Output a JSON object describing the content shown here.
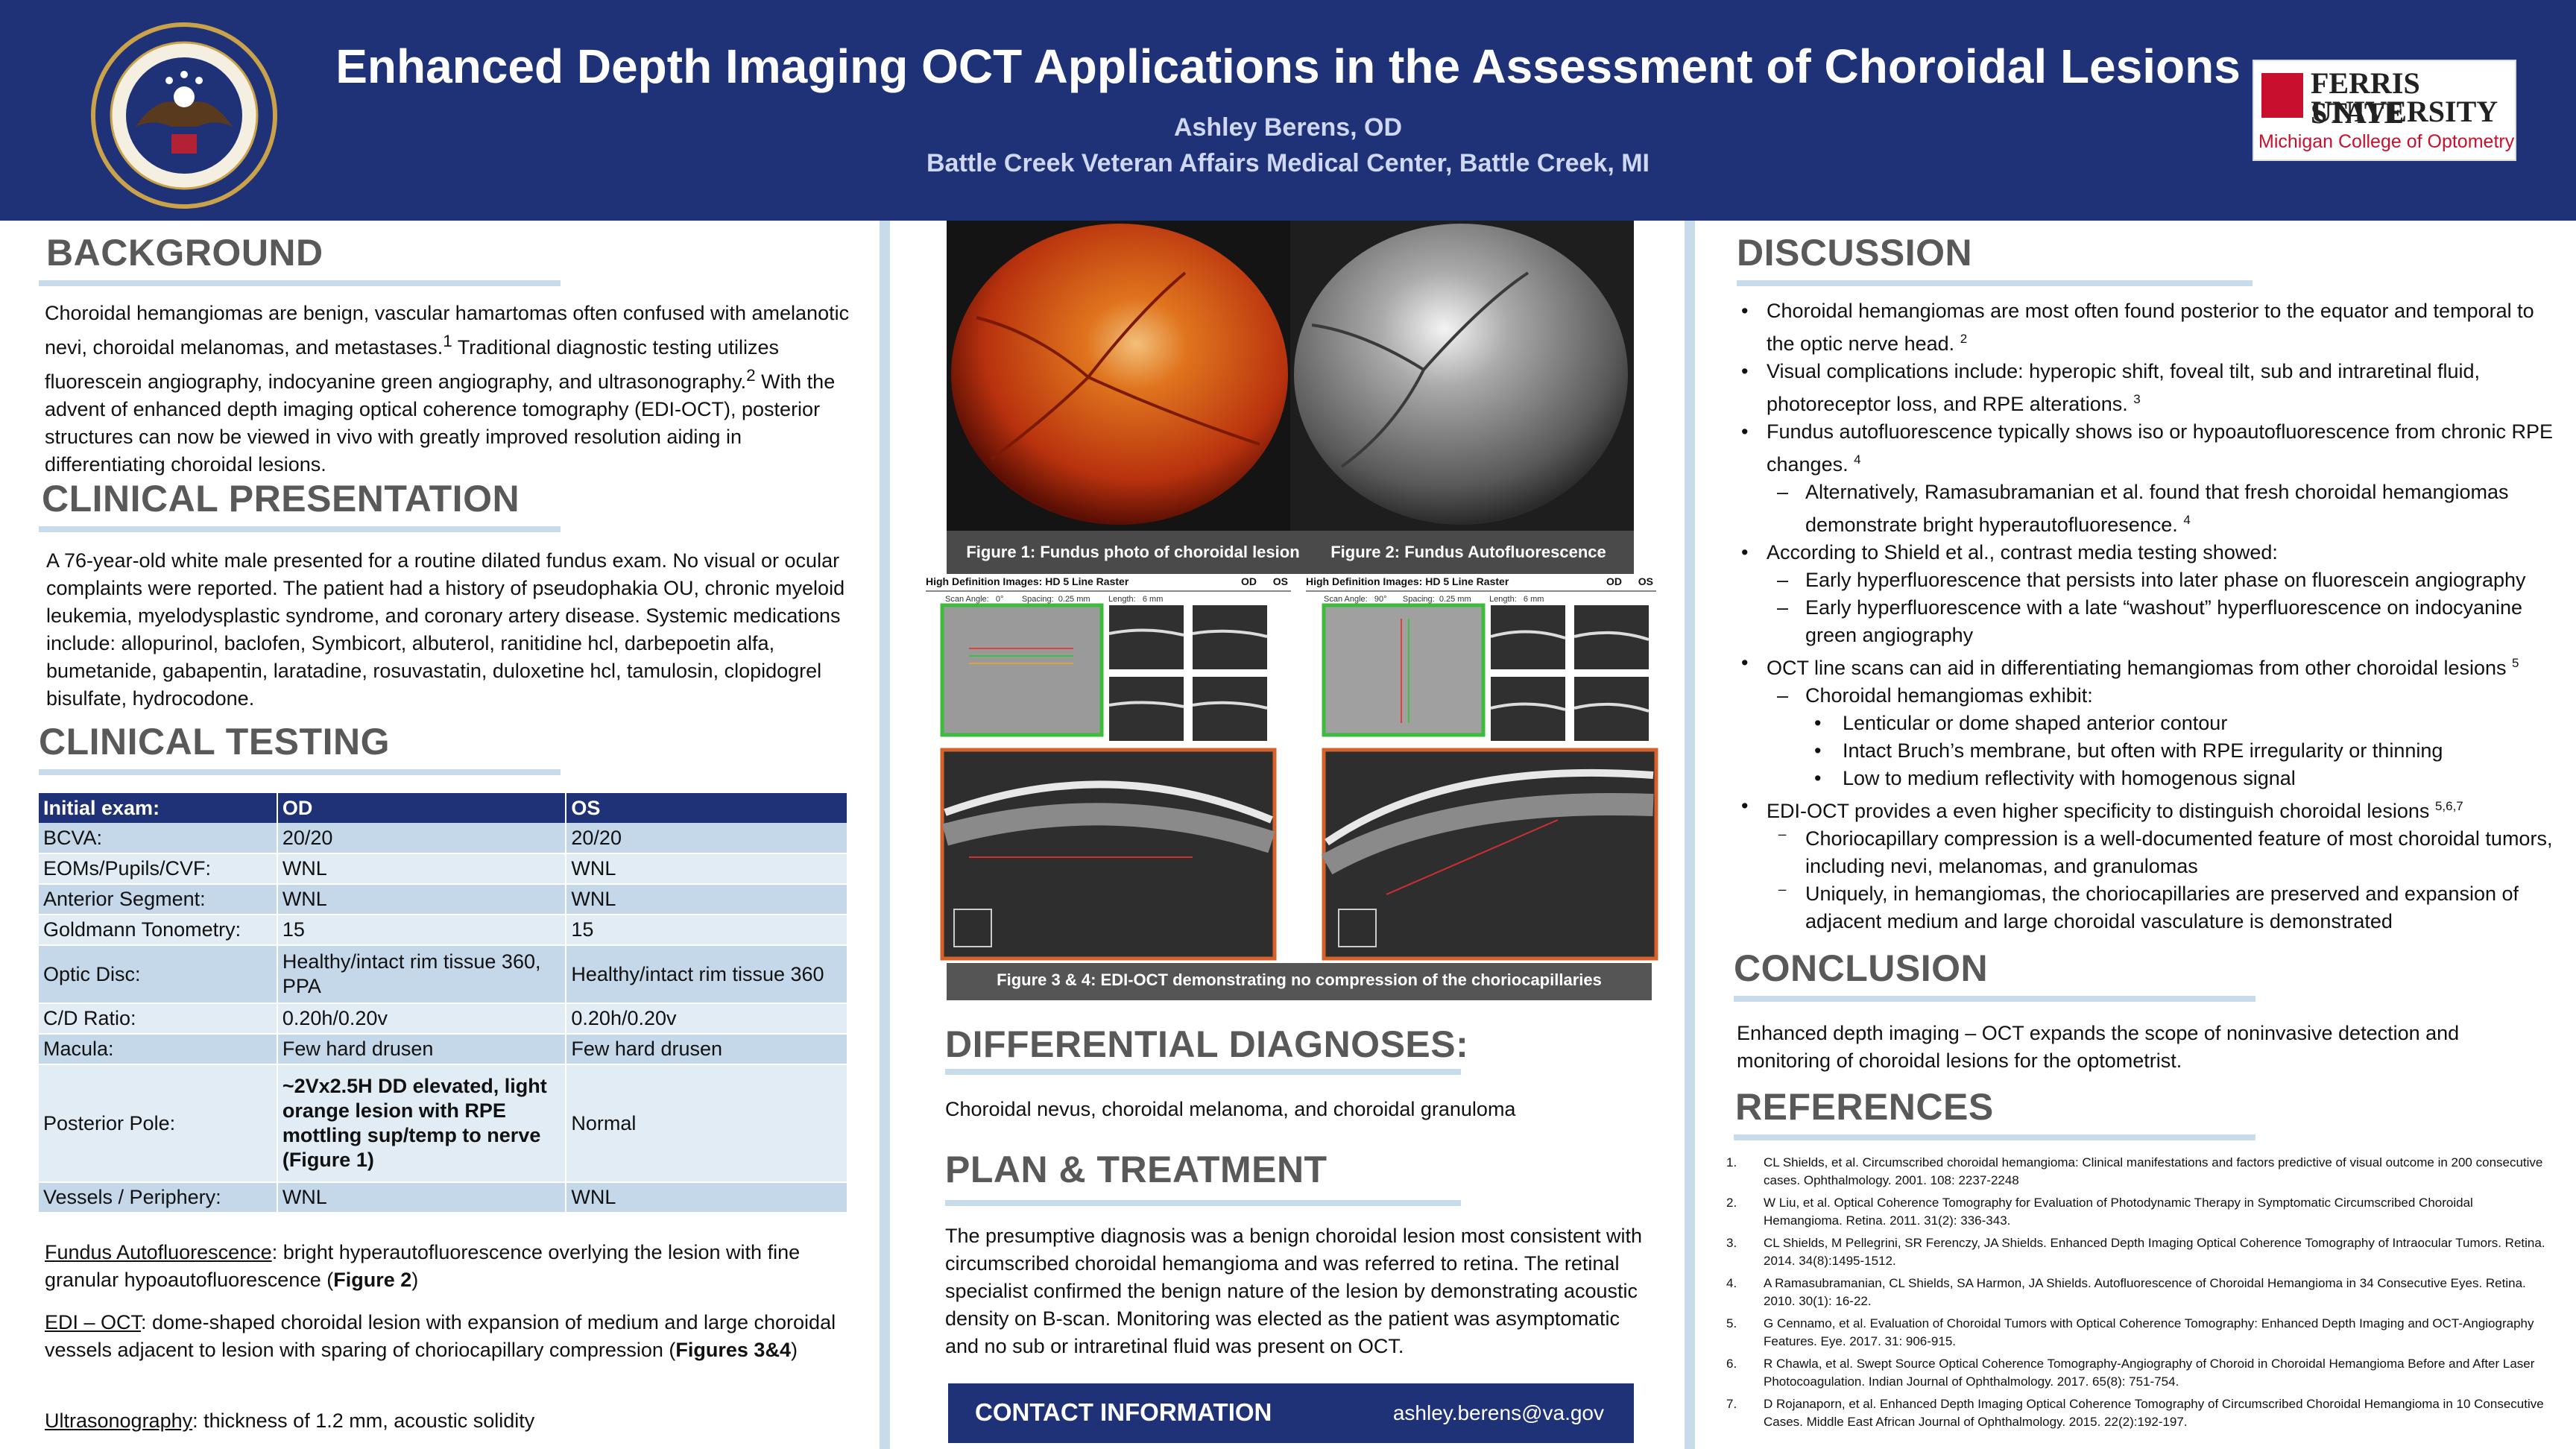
{
  "header": {
    "title": "Enhanced Depth Imaging OCT Applications in the Assessment of Choroidal Lesions",
    "author": "Ashley Berens, OD",
    "affiliation": "Battle Creek Veteran Affairs Medical Center, Battle Creek, MI",
    "left_logo_text": "DEPARTMENT OF VETERANS AFFAIRS · UNITED STATES OF AMERICA",
    "right_logo": {
      "line1": "FERRIS STATE",
      "line2": "UNIVERSITY",
      "line3": "Michigan College of Optometry"
    }
  },
  "background": {
    "heading": "BACKGROUND",
    "text_a": "Choroidal hemangiomas are benign, vascular hamartomas often confused with amelanotic nevi, choroidal melanomas, and metastases.",
    "sup_a": "1",
    "text_b": " Traditional diagnostic testing utilizes fluorescein angiography, indocyanine green angiography, and ultrasonography.",
    "sup_b": "2",
    "text_c": " With the advent of enhanced depth imaging optical coherence tomography (EDI-OCT), posterior structures can now be viewed in vivo with greatly improved resolution aiding in differentiating choroidal lesions."
  },
  "clinical_presentation": {
    "heading": "CLINICAL PRESENTATION",
    "text": "A 76-year-old white male presented for a routine dilated fundus exam.  No visual or ocular complaints were reported. The patient had a history of pseudophakia OU, chronic myeloid leukemia, myelodysplastic syndrome, and coronary artery disease. Systemic medications include: allopurinol, baclofen, Symbicort, albuterol, ranitidine hcl, darbepoetin alfa, bumetanide, gabapentin, laratadine, rosuvastatin, duloxetine hcl, tamulosin, clopidogrel bisulfate, hydrocodone."
  },
  "clinical_testing": {
    "heading": "CLINICAL TESTING",
    "columns": [
      "Initial exam:",
      "OD",
      "OS"
    ],
    "rows": [
      [
        "BCVA:",
        "20/20",
        "20/20"
      ],
      [
        "EOMs/Pupils/CVF:",
        "WNL",
        "WNL"
      ],
      [
        "Anterior Segment:",
        "WNL",
        "WNL"
      ],
      [
        "Goldmann Tonometry:",
        "15",
        "15"
      ],
      [
        "Optic Disc:",
        "Healthy/intact rim tissue 360, PPA",
        "Healthy/intact rim tissue 360"
      ],
      [
        "C/D Ratio:",
        "0.20h/0.20v",
        "0.20h/0.20v"
      ],
      [
        "Macula:",
        "Few hard drusen",
        "Few hard drusen"
      ],
      [
        "Posterior Pole:",
        "~2Vx2.5H DD elevated, light orange lesion with RPE mottling sup/temp to nerve (Figure 1)",
        "Normal"
      ],
      [
        "Vessels / Periphery:",
        "WNL",
        "WNL"
      ]
    ],
    "faf_label": "Fundus Autofluorescence",
    "faf_text": ":  bright hyperautofluorescence overlying the lesion with fine granular hypoautofluorescence (",
    "faf_fig": "Figure 2",
    "faf_end": ")",
    "edi_label": "EDI – OCT",
    "edi_text": ": dome-shaped choroidal lesion with expansion of medium and large choroidal vessels adjacent to lesion with sparing of choriocapillary compression (",
    "edi_fig": "Figures 3&4",
    "edi_end": ")",
    "us_label": "Ultrasonography",
    "us_text": ": thickness of 1.2 mm, acoustic solidity"
  },
  "figures": {
    "fig1_caption": "Figure 1:  Fundus photo of choroidal lesion",
    "fig2_caption": "Figure 2: Fundus Autofluorescence",
    "oct_header_left": "High Definition Images: HD 5 Line Raster",
    "oct_header_right": "High Definition Images: HD 5 Line Raster",
    "oct_od": "OD",
    "oct_os": "OS",
    "oct_scan_left": "Scan Angle:   0°        Spacing:  0.25 mm        Length:   6 mm",
    "oct_scan_right": "Scan Angle:   90°       Spacing:  0.25 mm        Length:   6 mm",
    "fig34_caption": "Figure 3 & 4:  EDI-OCT demonstrating no compression of the choriocapillaries"
  },
  "differential": {
    "heading": "DIFFERENTIAL DIAGNOSES:",
    "text": "Choroidal nevus, choroidal melanoma, and choroidal granuloma"
  },
  "plan": {
    "heading": "PLAN  & TREATMENT",
    "text": "The presumptive diagnosis was a benign choroidal lesion most consistent with circumscribed choroidal hemangioma and was referred to retina. The retinal specialist confirmed the benign nature of the lesion by demonstrating acoustic density on B-scan. Monitoring was elected as the patient was asymptomatic and no sub or intraretinal fluid was present on OCT."
  },
  "contact": {
    "label": "CONTACT INFORMATION",
    "email": "ashley.berens@va.gov"
  },
  "discussion": {
    "heading": "DISCUSSION",
    "items": [
      {
        "level": 1,
        "mark": "•",
        "text": "Choroidal hemangiomas are most often found posterior to the equator and temporal to the optic nerve head.",
        "sup": "2"
      },
      {
        "level": 1,
        "mark": "•",
        "text": "Visual complications include: hyperopic shift, foveal tilt, sub and intraretinal fluid, photoreceptor loss, and RPE alterations.",
        "sup": "3"
      },
      {
        "level": 1,
        "mark": "•",
        "text": "Fundus autofluorescence typically shows iso or hypoautofluorescence from chronic RPE changes.",
        "sup": "4"
      },
      {
        "level": 2,
        "mark": "–",
        "text": "Alternatively, Ramasubramanian et al. found that fresh choroidal hemangiomas demonstrate bright hyperautofluoresence.",
        "sup": "4"
      },
      {
        "level": 1,
        "mark": "•",
        "text": "According to Shield et al., contrast media testing showed:",
        "sup": ""
      },
      {
        "level": 2,
        "mark": "–",
        "text": "Early hyperfluorescence that persists into later phase on fluorescein angiography",
        "sup": ""
      },
      {
        "level": 2,
        "mark": "–",
        "text": "Early hyperfluorescence with a late “washout” hyperfluorescence on indocyanine green angiography",
        "sup": ""
      },
      {
        "level": 1,
        "mark": "•",
        "text": "OCT line scans can aid in differentiating hemangiomas from other choroidal lesions",
        "sup": "5"
      },
      {
        "level": 2,
        "mark": "–",
        "text": "Choroidal hemangiomas exhibit:",
        "sup": ""
      },
      {
        "level": 3,
        "mark": "•",
        "text": "Lenticular or dome shaped anterior contour",
        "sup": ""
      },
      {
        "level": 3,
        "mark": "•",
        "text": "Intact Bruch’s membrane, but often with RPE irregularity or thinning",
        "sup": ""
      },
      {
        "level": 3,
        "mark": "•",
        "text": "Low to medium reflectivity with homogenous signal",
        "sup": ""
      },
      {
        "level": 1,
        "mark": "•",
        "text": "EDI-OCT provides a even higher specificity to distinguish choroidal lesions",
        "sup": "5,6,7"
      },
      {
        "level": 2,
        "mark": "⁻",
        "text": "Choriocapillary compression is a well-documented feature of most choroidal tumors, including nevi, melanomas, and granulomas",
        "sup": ""
      },
      {
        "level": 2,
        "mark": "⁻",
        "text": "Uniquely, in hemangiomas, the choriocapillaries are preserved and expansion of adjacent medium and large choroidal vasculature is demonstrated",
        "sup": ""
      }
    ]
  },
  "conclusion": {
    "heading": "CONCLUSION",
    "text": "Enhanced depth imaging – OCT expands the scope of noninvasive detection and monitoring of choroidal lesions for the optometrist."
  },
  "references": {
    "heading": "REFERENCES",
    "items": [
      {
        "num": "1.",
        "text": "CL Shields, et al. Circumscribed choroidal hemangioma: Clinical manifestations and factors predictive  of visual outcome in 200 consecutive cases. Ophthalmology. 2001. 108: 2237-2248"
      },
      {
        "num": "2.",
        "text": "W Liu, et al. Optical Coherence Tomography for Evaluation of Photodynamic Therapy in Symptomatic Circumscribed Choroidal Hemangioma. Retina. 2011. 31(2): 336-343."
      },
      {
        "num": "3.",
        "text": "CL Shields, M Pellegrini, SR Ferenczy, JA Shields. Enhanced Depth Imaging Optical Coherence Tomography of Intraocular Tumors. Retina. 2014. 34(8):1495-1512."
      },
      {
        "num": "4.",
        "text": "A Ramasubramanian, CL Shields, SA Harmon, JA Shields. Autofluorescence of Choroidal Hemangioma in 34 Consecutive Eyes. Retina. 2010. 30(1): 16-22."
      },
      {
        "num": "5.",
        "text": "G Cennamo, et al. Evaluation of Choroidal Tumors with Optical Coherence Tomography: Enhanced Depth Imaging and OCT-Angiography Features. Eye. 2017. 31: 906-915."
      },
      {
        "num": "6.",
        "text": "R Chawla, et al. Swept Source Optical Coherence Tomography-Angiography of Choroid in Choroidal Hemangioma Before and After Laser Photocoagulation. Indian Journal of Ophthalmology. 2017. 65(8): 751-754."
      },
      {
        "num": "7.",
        "text": "D Rojanaporn, et al. Enhanced Depth Imaging Optical Coherence Tomography of Circumscribed Choroidal Hemangioma in 10 Consecutive Cases. Middle East African Journal of Ophthalmology. 2015. 22(2):192-197."
      }
    ]
  }
}
